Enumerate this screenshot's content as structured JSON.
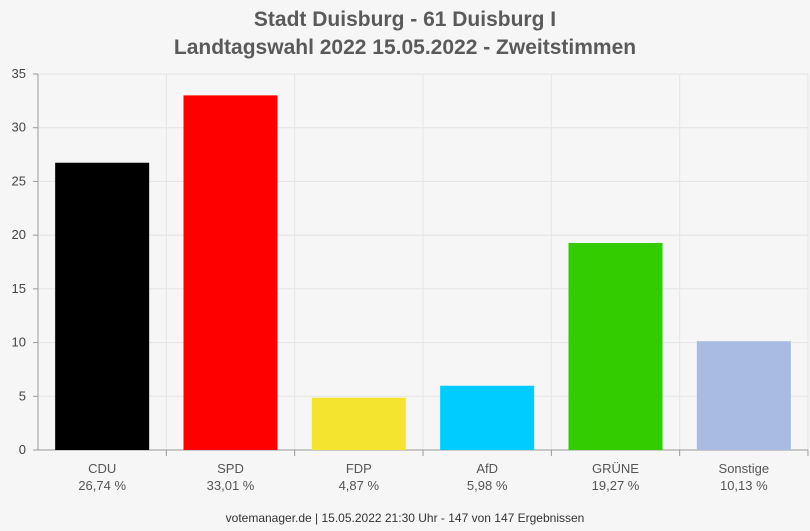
{
  "chart_data": {
    "type": "bar",
    "title": "Stadt Duisburg - 61 Duisburg I",
    "subtitle": "Landtagswahl 2022 15.05.2022  - Zweitstimmen",
    "categories": [
      "CDU",
      "SPD",
      "FDP",
      "AfD",
      "GRÜNE",
      "Sonstige"
    ],
    "value_labels": [
      "26,74 %",
      "33,01 %",
      "4,87 %",
      "5,98 %",
      "19,27 %",
      "10,13 %"
    ],
    "values": [
      26.74,
      33.01,
      4.87,
      5.98,
      19.27,
      10.13
    ],
    "colors": [
      "#000000",
      "#ff0000",
      "#f5e42f",
      "#00ccff",
      "#33cc00",
      "#aabbe3"
    ],
    "ylim": [
      0,
      35
    ],
    "yticks": [
      0,
      5,
      10,
      15,
      20,
      25,
      30,
      35
    ],
    "grid": true,
    "xlabel": "",
    "ylabel": ""
  },
  "footer": "votemanager.de | 15.05.2022 21:30 Uhr - 147 von 147 Ergebnissen"
}
